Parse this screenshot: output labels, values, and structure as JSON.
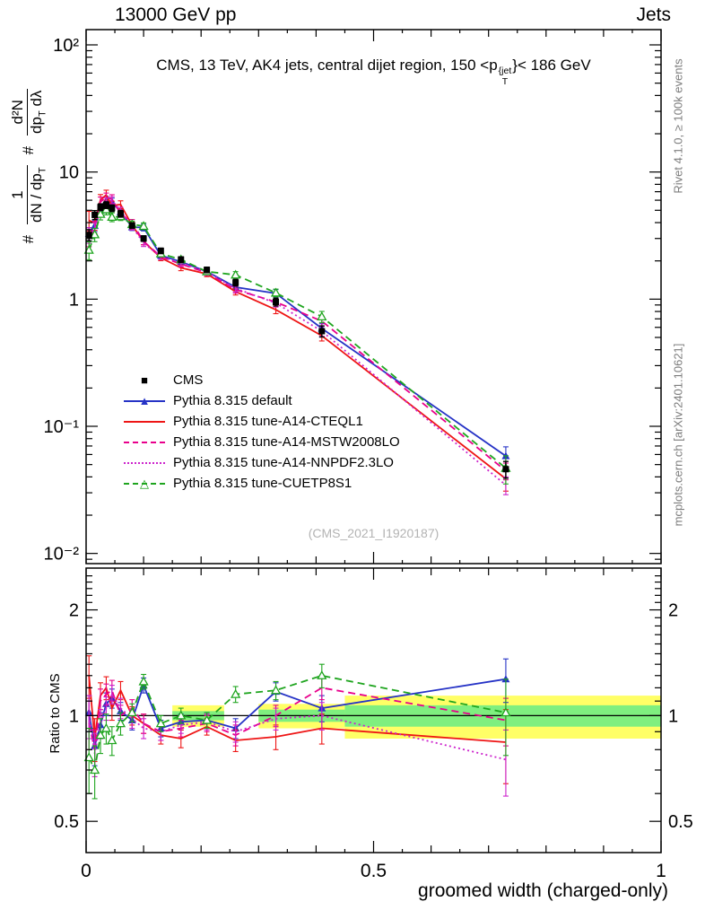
{
  "header": {
    "left": "13000 GeV pp",
    "right": "Jets"
  },
  "title": {
    "pre": "CMS, 13 TeV, AK4 jets, central dijet region, 150 <p",
    "sup": "{jet",
    "sub": "T",
    "post": "}< 186 GeV"
  },
  "ylabel": {
    "hash1": "#",
    "num1": "1",
    "den1": "dN / dp",
    "den1sub": "T",
    "hash2": "#",
    "num2": "d²N",
    "den2a": "dp",
    "den2sub": "T",
    "den2b": " dλ"
  },
  "ratio_ylabel": "Ratio to CMS",
  "xlabel": "groomed width (charged-only)",
  "watermark": "(CMS_2021_I1920187)",
  "side_notes": {
    "top_right": "Rivet 4.1.0, ≥ 100k events",
    "bottom_right": "mcplots.cern.ch [arXiv:2401.10621]"
  },
  "chart_data": {
    "type": "line",
    "title": "CMS, 13 TeV, AK4 jets, central dijet region, 150 < p_T^{jet} < 186 GeV",
    "xlabel": "groomed width (charged-only)",
    "ylabel": "# 1/(dN/dp_T) # d²N/(dp_T dλ)",
    "ratio_ylabel": "Ratio to CMS",
    "xlim": [
      0,
      1
    ],
    "ylim": [
      0.01,
      130
    ],
    "ylim_log": [
      -2.08,
      2.12
    ],
    "ratio_ylim": [
      0.41,
      2.6
    ],
    "ratio_ylim_log": [
      -0.39,
      0.42
    ],
    "x_ticks": [
      {
        "v": 0,
        "label": "0"
      },
      {
        "v": 0.5,
        "label": "0.5"
      },
      {
        "v": 1,
        "label": "1"
      }
    ],
    "y_ticks": [
      {
        "v": 100,
        "label": "10²"
      },
      {
        "v": 10,
        "label": "10"
      },
      {
        "v": 1,
        "label": "1"
      },
      {
        "v": 0.1,
        "label": "10⁻¹"
      },
      {
        "v": 0.01,
        "label": "10⁻²"
      }
    ],
    "ratio_y_ticks": [
      {
        "v": 2,
        "label": "2"
      },
      {
        "v": 1,
        "label": "1"
      },
      {
        "v": 0.5,
        "label": "0.5"
      }
    ],
    "x": [
      0.005,
      0.015,
      0.025,
      0.035,
      0.045,
      0.06,
      0.08,
      0.1,
      0.13,
      0.165,
      0.21,
      0.26,
      0.33,
      0.41,
      0.73
    ],
    "cms": {
      "label": "CMS",
      "color": "#000000",
      "marker": "square",
      "y": [
        3.2,
        4.6,
        5.3,
        5.5,
        5.2,
        4.7,
        3.8,
        3.0,
        2.4,
        2.05,
        1.7,
        1.35,
        0.95,
        0.56,
        0.046
      ],
      "err_frac": [
        0.1,
        0.08,
        0.06,
        0.06,
        0.06,
        0.06,
        0.05,
        0.05,
        0.05,
        0.05,
        0.05,
        0.06,
        0.07,
        0.1,
        0.15
      ]
    },
    "series": [
      {
        "name": "Pythia 8.315 default",
        "color": "#2633c6",
        "dash": "solid",
        "marker": "triangle-filled",
        "ratio": [
          1.02,
          0.82,
          0.94,
          1.08,
          1.12,
          1.03,
          0.97,
          1.22,
          0.92,
          0.96,
          0.97,
          0.92,
          1.17,
          1.05,
          1.27
        ],
        "ratio_err": [
          0.12,
          0.1,
          0.08,
          0.08,
          0.07,
          0.06,
          0.06,
          0.06,
          0.05,
          0.05,
          0.05,
          0.06,
          0.07,
          0.09,
          0.18
        ]
      },
      {
        "name": "Pythia 8.315 tune-A14-CTEQL1",
        "color": "#ee1515",
        "dash": "solid",
        "marker": "none",
        "ratio": [
          1.3,
          0.86,
          1.14,
          1.2,
          1.05,
          1.18,
          1.0,
          0.95,
          0.88,
          0.86,
          0.93,
          0.85,
          0.87,
          0.92,
          0.84
        ],
        "ratio_err": [
          0.18,
          0.12,
          0.1,
          0.09,
          0.08,
          0.07,
          0.06,
          0.06,
          0.05,
          0.05,
          0.05,
          0.06,
          0.07,
          0.09,
          0.2
        ]
      },
      {
        "name": "Pythia 8.315 tune-A14-MSTW2008LO",
        "color": "#e8008c",
        "dash": "dashed",
        "marker": "none",
        "ratio": [
          0.95,
          0.8,
          1.1,
          1.15,
          1.18,
          1.0,
          1.05,
          0.95,
          0.9,
          0.92,
          0.95,
          0.88,
          1.0,
          1.2,
          0.97
        ],
        "ratio_err": [
          0.15,
          0.11,
          0.09,
          0.08,
          0.08,
          0.07,
          0.06,
          0.06,
          0.05,
          0.05,
          0.05,
          0.06,
          0.07,
          0.09,
          0.15
        ]
      },
      {
        "name": "Pythia 8.315 tune-A14-NNPDF2.3LO",
        "color": "#cc22cc",
        "dash": "dotted",
        "marker": "none",
        "ratio": [
          1.0,
          0.78,
          0.95,
          1.05,
          1.15,
          1.05,
          0.98,
          0.92,
          0.9,
          0.94,
          0.96,
          0.9,
          0.98,
          1.0,
          0.75
        ],
        "ratio_err": [
          0.14,
          0.11,
          0.09,
          0.08,
          0.07,
          0.07,
          0.06,
          0.06,
          0.05,
          0.05,
          0.05,
          0.06,
          0.07,
          0.09,
          0.16
        ]
      },
      {
        "name": "Pythia 8.315 tune-CUETP8S1",
        "color": "#1fa51f",
        "dash": "dashed",
        "marker": "triangle-open",
        "ratio": [
          0.76,
          0.7,
          0.88,
          0.92,
          0.85,
          0.95,
          1.02,
          1.25,
          0.95,
          1.0,
          0.97,
          1.15,
          1.18,
          1.3,
          1.02
        ],
        "ratio_err": [
          0.16,
          0.12,
          0.1,
          0.09,
          0.08,
          0.07,
          0.06,
          0.06,
          0.05,
          0.05,
          0.05,
          0.06,
          0.07,
          0.1,
          0.25
        ]
      }
    ],
    "ratio_ref_line": 1,
    "bands": {
      "yellow_color": "#ffff66",
      "green_color": "#7fef7f",
      "yellow": [
        {
          "x0": 0.15,
          "x1": 0.24,
          "lo": 0.93,
          "hi": 1.07
        },
        {
          "x0": 0.3,
          "x1": 0.45,
          "lo": 0.92,
          "hi": 1.08
        },
        {
          "x0": 0.45,
          "x1": 1.0,
          "lo": 0.86,
          "hi": 1.14
        }
      ],
      "green": [
        {
          "x0": 0.15,
          "x1": 0.24,
          "lo": 0.97,
          "hi": 1.03
        },
        {
          "x0": 0.3,
          "x1": 0.45,
          "lo": 0.96,
          "hi": 1.04
        },
        {
          "x0": 0.45,
          "x1": 1.0,
          "lo": 0.93,
          "hi": 1.07
        }
      ]
    }
  }
}
